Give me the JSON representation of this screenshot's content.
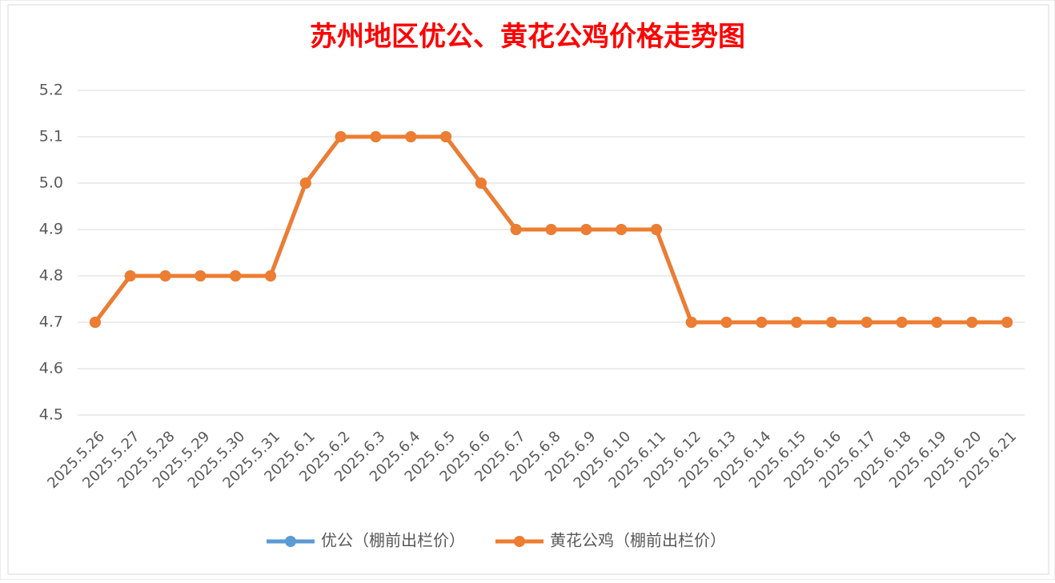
{
  "chart_data": {
    "type": "line",
    "title": "苏州地区优公、黄花公鸡价格走势图",
    "categories": [
      "2025.5.26",
      "2025.5.27",
      "2025.5.28",
      "2025.5.29",
      "2025.5.30",
      "2025.5.31",
      "2025.6.1",
      "2025.6.2",
      "2025.6.3",
      "2025.6.4",
      "2025.6.5",
      "2025.6.6",
      "2025.6.7",
      "2025.6.8",
      "2025.6.9",
      "2025.6.10",
      "2025.6.11",
      "2025.6.12",
      "2025.6.13",
      "2025.6.14",
      "2025.6.15",
      "2025.6.16",
      "2025.6.17",
      "2025.6.18",
      "2025.6.19",
      "2025.6.20",
      "2025.6.21"
    ],
    "series": [
      {
        "name": "优公（棚前出栏价）",
        "color": "#5b9bd5",
        "values": [
          4.7,
          4.8,
          4.8,
          4.8,
          4.8,
          4.8,
          5.0,
          5.1,
          5.1,
          5.1,
          5.1,
          5.0,
          4.9,
          4.9,
          4.9,
          4.9,
          4.9,
          4.7,
          4.7,
          4.7,
          4.7,
          4.7,
          4.7,
          4.7,
          4.7,
          4.7,
          4.7
        ]
      },
      {
        "name": "黄花公鸡（棚前出栏价）",
        "color": "#ed7d31",
        "values": [
          4.7,
          4.8,
          4.8,
          4.8,
          4.8,
          4.8,
          5.0,
          5.1,
          5.1,
          5.1,
          5.1,
          5.0,
          4.9,
          4.9,
          4.9,
          4.9,
          4.9,
          4.7,
          4.7,
          4.7,
          4.7,
          4.7,
          4.7,
          4.7,
          4.7,
          4.7,
          4.7
        ]
      }
    ],
    "ylim": [
      4.5,
      5.2
    ],
    "yticks": [
      4.5,
      4.6,
      4.7,
      4.8,
      4.9,
      {
        "value": 5,
        "label": "5.0"
      },
      5.1,
      5.2
    ],
    "grid": true,
    "legend": "bottom"
  }
}
